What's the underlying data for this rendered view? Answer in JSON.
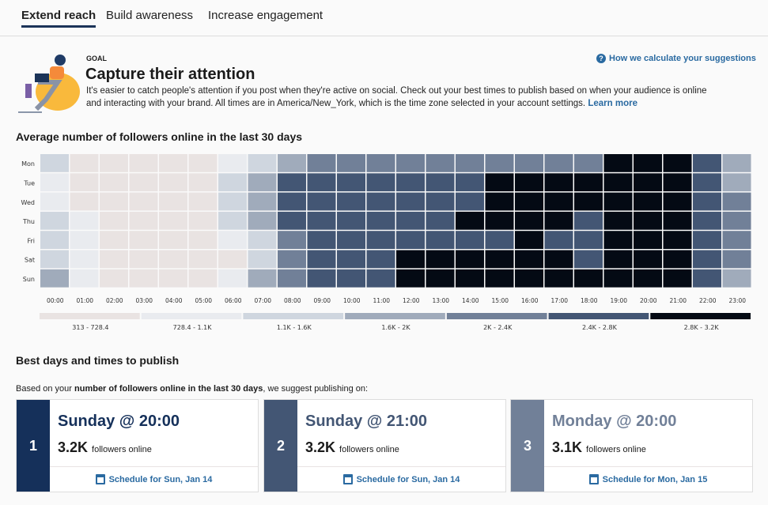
{
  "tabs": [
    {
      "label": "Extend reach",
      "active": true
    },
    {
      "label": "Build awareness"
    },
    {
      "label": "Increase engagement"
    }
  ],
  "goal": {
    "eyebrow": "GOAL",
    "title": "Capture their attention",
    "description": "It's easier to catch people's attention if you post when they're active on social. Check out your best times to publish based on when your audience is online and interacting with your brand. All times are in America/New_York, which is the time zone selected in your account settings.",
    "learn_more": "Learn more",
    "how_link": "How we calculate your suggestions"
  },
  "chart_data": {
    "type": "heatmap",
    "title": "Average number of followers online in the last 30 days",
    "rows": [
      "Mon",
      "Tue",
      "Wed",
      "Thu",
      "Fri",
      "Sat",
      "Sun"
    ],
    "columns": [
      "00:00",
      "01:00",
      "02:00",
      "03:00",
      "04:00",
      "05:00",
      "06:00",
      "07:00",
      "08:00",
      "09:00",
      "10:00",
      "11:00",
      "12:00",
      "13:00",
      "14:00",
      "15:00",
      "16:00",
      "17:00",
      "18:00",
      "19:00",
      "20:00",
      "21:00",
      "22:00",
      "23:00"
    ],
    "bins": [
      {
        "label": "313 - 728.4",
        "color": "#e9e3e2"
      },
      {
        "label": "728.4 - 1.1K",
        "color": "#e9ebef"
      },
      {
        "label": "1.1K - 1.6K",
        "color": "#cfd6df"
      },
      {
        "label": "1.6K - 2K",
        "color": "#a0abbb"
      },
      {
        "label": "2K - 2.4K",
        "color": "#718098"
      },
      {
        "label": "2.4K - 2.8K",
        "color": "#435674"
      },
      {
        "label": "2.8K - 3.2K",
        "color": "#040a14"
      }
    ],
    "bin_index": [
      [
        2,
        0,
        0,
        0,
        0,
        0,
        1,
        2,
        3,
        4,
        4,
        4,
        4,
        4,
        4,
        4,
        4,
        4,
        4,
        6,
        6,
        6,
        5,
        3
      ],
      [
        1,
        0,
        0,
        0,
        0,
        0,
        2,
        3,
        5,
        5,
        5,
        5,
        5,
        5,
        5,
        6,
        6,
        6,
        6,
        6,
        6,
        6,
        5,
        3
      ],
      [
        1,
        0,
        0,
        0,
        0,
        0,
        2,
        3,
        5,
        5,
        5,
        5,
        5,
        5,
        5,
        6,
        6,
        6,
        6,
        6,
        6,
        6,
        5,
        4
      ],
      [
        2,
        1,
        0,
        0,
        0,
        0,
        2,
        3,
        5,
        5,
        5,
        5,
        5,
        5,
        6,
        6,
        6,
        6,
        5,
        6,
        6,
        6,
        5,
        4
      ],
      [
        2,
        1,
        0,
        0,
        0,
        0,
        1,
        2,
        4,
        5,
        5,
        5,
        5,
        5,
        5,
        5,
        6,
        5,
        5,
        6,
        6,
        6,
        5,
        4
      ],
      [
        2,
        1,
        0,
        0,
        0,
        0,
        0,
        2,
        4,
        5,
        5,
        5,
        6,
        6,
        6,
        6,
        6,
        6,
        5,
        6,
        6,
        6,
        5,
        4
      ],
      [
        3,
        1,
        0,
        0,
        0,
        0,
        1,
        3,
        4,
        5,
        5,
        5,
        6,
        6,
        6,
        6,
        6,
        6,
        6,
        6,
        6,
        6,
        5,
        3
      ]
    ]
  },
  "best": {
    "title": "Best days and times to publish",
    "intro_pre": "Based on your ",
    "intro_bold": "number of followers online in the last 30 days",
    "intro_post": ", we suggest publishing on:",
    "cards": [
      {
        "rank": "1",
        "when": "Sunday @ 20:00",
        "count": "3.2K",
        "unit": "followers online",
        "schedule": "Schedule for Sun, Jan 14",
        "color": "#15305a"
      },
      {
        "rank": "2",
        "when": "Sunday @ 21:00",
        "count": "3.2K",
        "unit": "followers online",
        "schedule": "Schedule for Sun, Jan 14",
        "color": "#435674"
      },
      {
        "rank": "3",
        "when": "Monday @ 20:00",
        "count": "3.1K",
        "unit": "followers online",
        "schedule": "Schedule for Mon, Jan 15",
        "color": "#718098"
      }
    ]
  }
}
